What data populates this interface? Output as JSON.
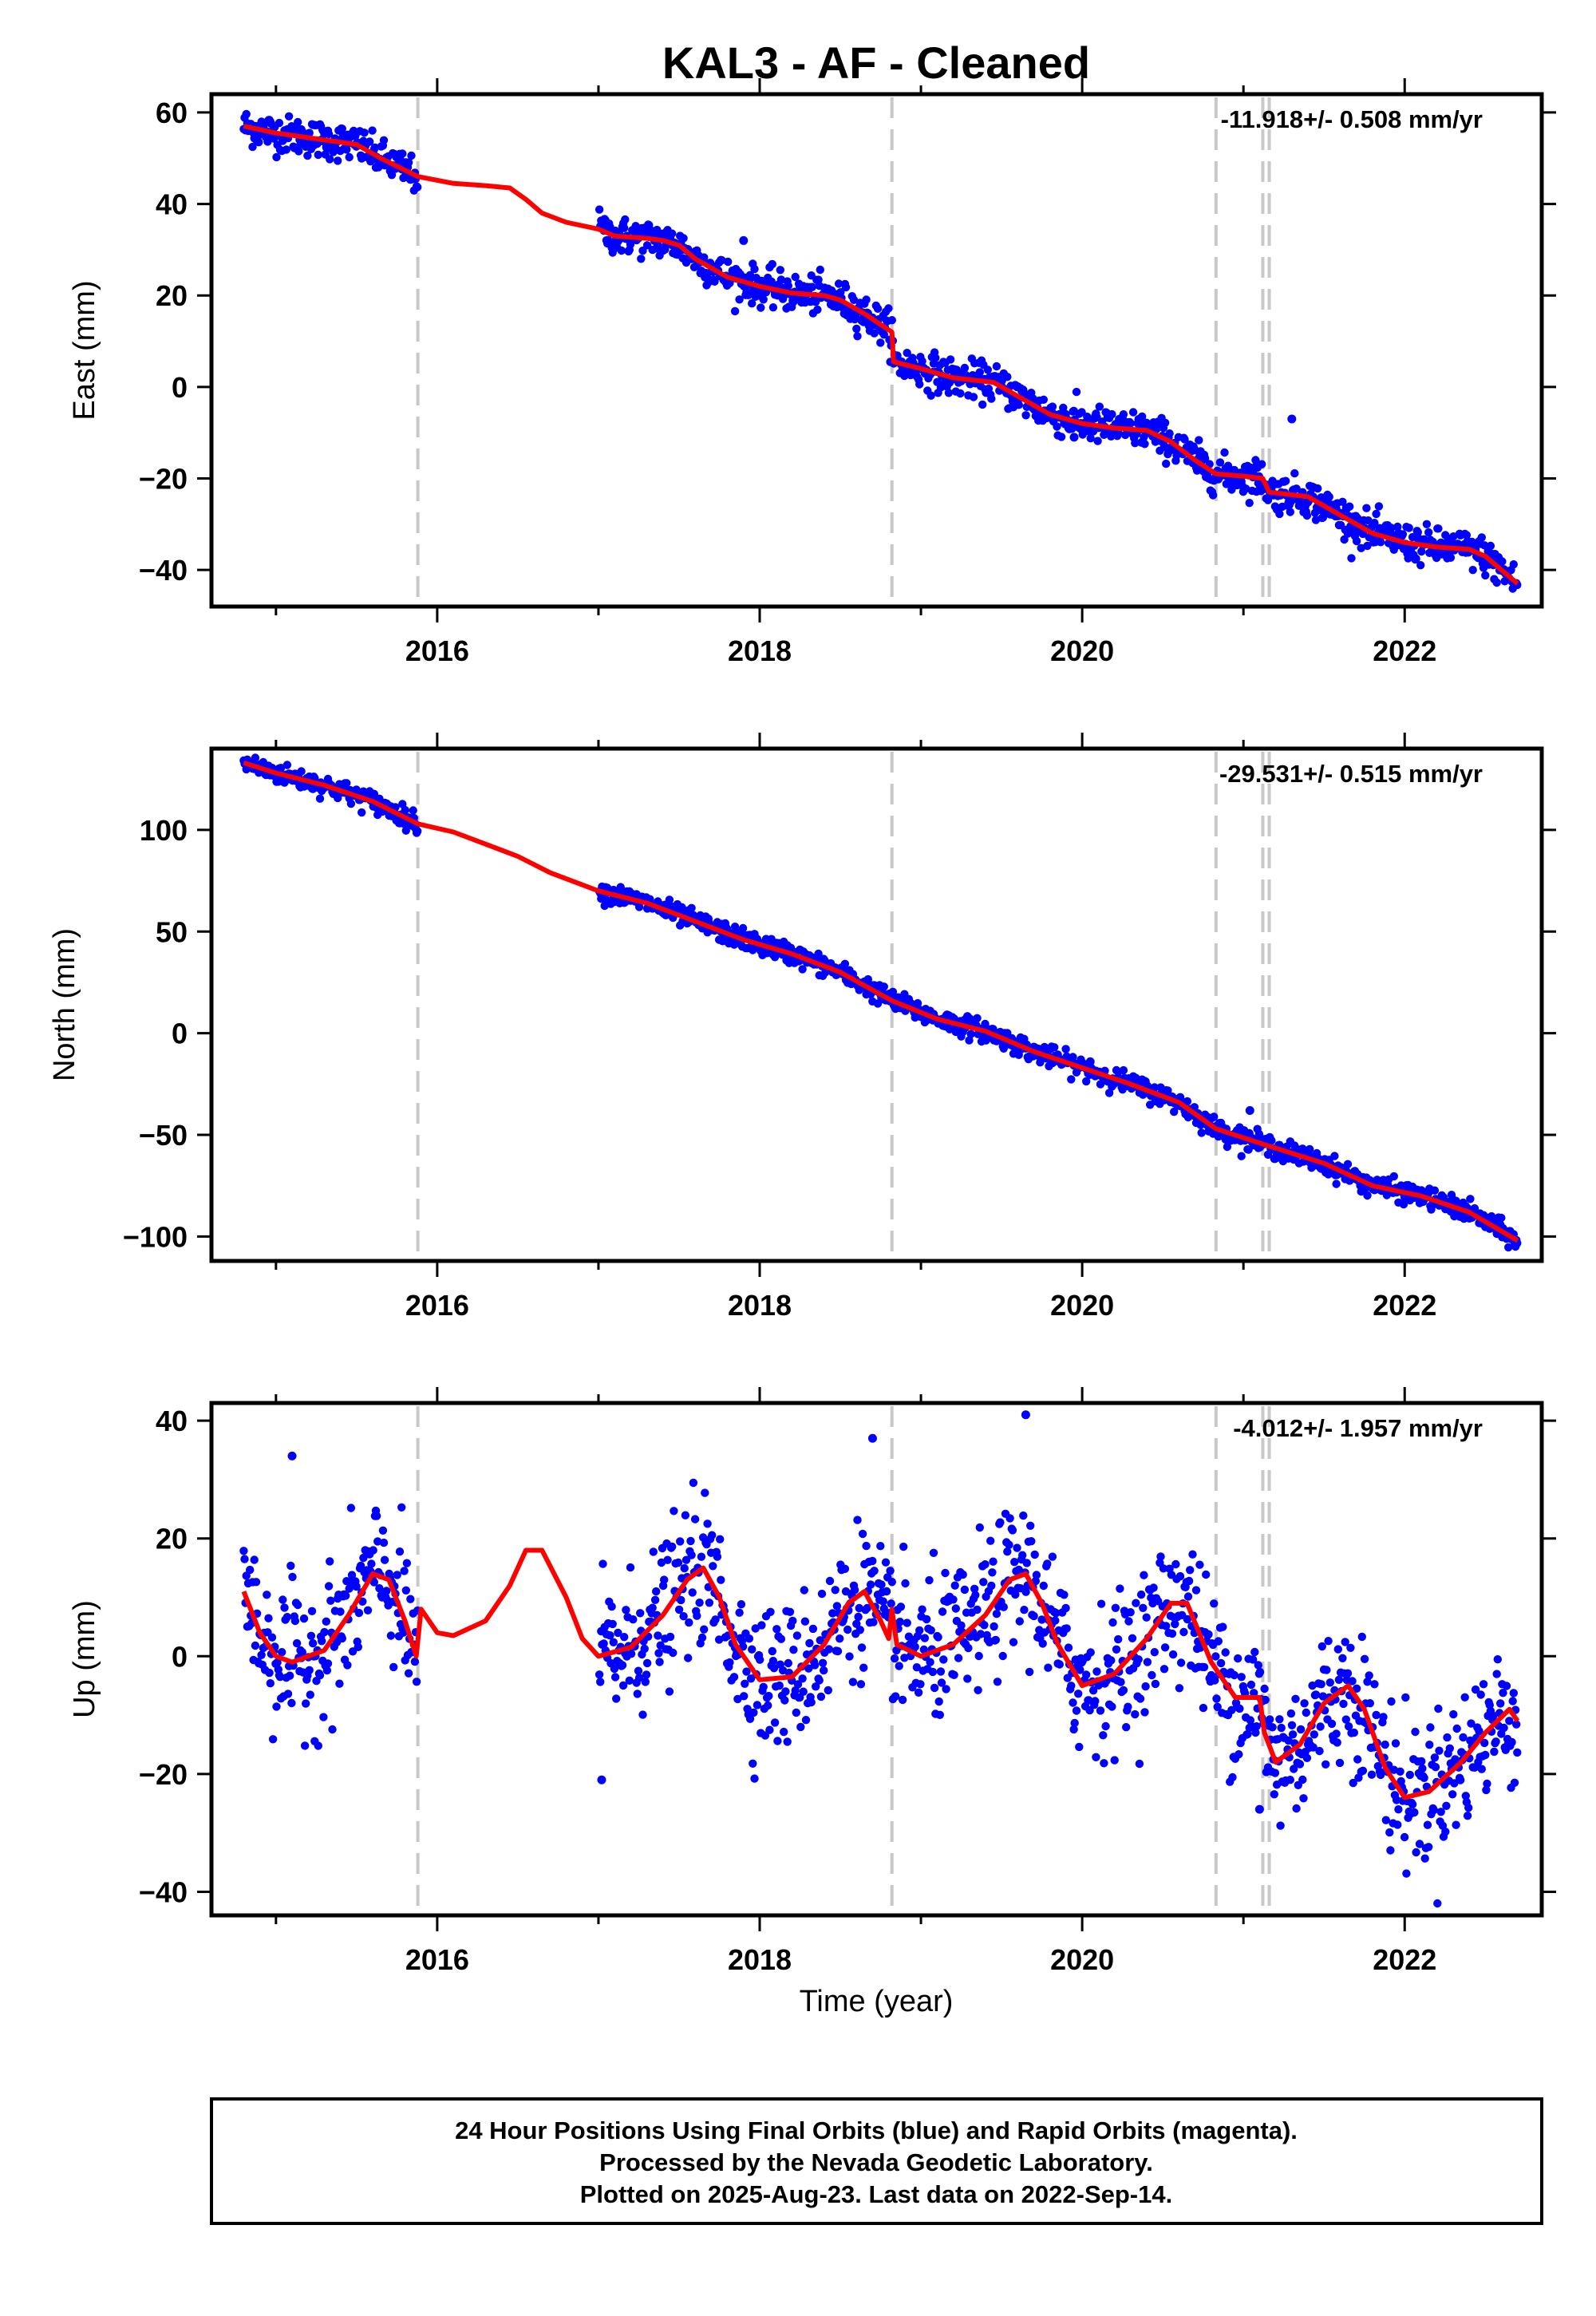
{
  "footer": {
    "line1": "24 Hour Positions Using Final Orbits (blue) and Rapid Orbits (magenta).",
    "line2": "Processed by the Nevada Geodetic Laboratory.",
    "line3": "Plotted on 2025-Aug-23. Last data on 2022-Sep-14."
  },
  "colors": {
    "data": "#0000ff",
    "model": "#ff0000",
    "events": "#c8c8c8",
    "frame": "#000000"
  },
  "chart_data": {
    "type": "scatter",
    "title": "KAL3  - AF - Cleaned",
    "xlabel": "Time (year)",
    "xlim": [
      2014.6,
      2022.85
    ],
    "x_ticks": [
      2016,
      2018,
      2020,
      2022
    ],
    "event_lines": [
      2015.88,
      2018.82,
      2020.83,
      2021.12,
      2021.16
    ],
    "data_gap": [
      2015.88,
      2017.0
    ],
    "data_range": [
      2014.8,
      2022.7
    ],
    "panels": [
      {
        "name": "east",
        "ylabel": "East (mm)",
        "ylim": [
          -48,
          64
        ],
        "y_ticks": [
          60,
          40,
          20,
          0,
          -20,
          -40
        ],
        "rate": "-11.918+/- 0.508 mm/yr",
        "model": [
          [
            2014.8,
            57
          ],
          [
            2015.0,
            55.5
          ],
          [
            2015.3,
            54
          ],
          [
            2015.5,
            53
          ],
          [
            2015.65,
            50
          ],
          [
            2015.88,
            46
          ],
          [
            2016.1,
            44.5
          ],
          [
            2016.3,
            44
          ],
          [
            2016.45,
            43.5
          ],
          [
            2016.55,
            41
          ],
          [
            2016.65,
            38
          ],
          [
            2016.8,
            36
          ],
          [
            2017.0,
            34.5
          ],
          [
            2017.1,
            33
          ],
          [
            2017.3,
            32.5
          ],
          [
            2017.4,
            32
          ],
          [
            2017.5,
            31
          ],
          [
            2017.6,
            28
          ],
          [
            2017.8,
            24
          ],
          [
            2018.0,
            22
          ],
          [
            2018.2,
            20.5
          ],
          [
            2018.4,
            20
          ],
          [
            2018.5,
            19
          ],
          [
            2018.65,
            16
          ],
          [
            2018.82,
            12
          ],
          [
            2018.83,
            5.5
          ],
          [
            2019.0,
            4
          ],
          [
            2019.2,
            2
          ],
          [
            2019.45,
            1
          ],
          [
            2019.6,
            -2
          ],
          [
            2019.8,
            -6
          ],
          [
            2020.0,
            -8
          ],
          [
            2020.2,
            -9
          ],
          [
            2020.4,
            -9.5
          ],
          [
            2020.55,
            -12
          ],
          [
            2020.7,
            -16
          ],
          [
            2020.83,
            -19
          ],
          [
            2021.0,
            -19.5
          ],
          [
            2021.12,
            -20
          ],
          [
            2021.16,
            -23
          ],
          [
            2021.4,
            -24
          ],
          [
            2021.6,
            -28
          ],
          [
            2021.8,
            -32
          ],
          [
            2022.0,
            -34
          ],
          [
            2022.2,
            -35
          ],
          [
            2022.4,
            -35.5
          ],
          [
            2022.5,
            -37
          ],
          [
            2022.7,
            -43
          ]
        ],
        "residual_sd": 2.0,
        "outliers": [
          [
            2021.3,
            -7
          ],
          [
            2019.95,
            -11
          ],
          [
            2017.9,
            32
          ]
        ]
      },
      {
        "name": "north",
        "ylabel": "North (mm)",
        "ylim": [
          -112,
          140
        ],
        "y_ticks": [
          100,
          50,
          0,
          -50,
          -100
        ],
        "rate": "-29.531+/- 0.515 mm/yr",
        "model": [
          [
            2014.8,
            133
          ],
          [
            2015.0,
            128
          ],
          [
            2015.3,
            122
          ],
          [
            2015.6,
            114
          ],
          [
            2015.88,
            103
          ],
          [
            2016.1,
            99
          ],
          [
            2016.3,
            93
          ],
          [
            2016.5,
            87
          ],
          [
            2016.7,
            79
          ],
          [
            2016.9,
            73
          ],
          [
            2017.0,
            70
          ],
          [
            2017.3,
            64
          ],
          [
            2017.6,
            55
          ],
          [
            2017.9,
            46
          ],
          [
            2018.2,
            39
          ],
          [
            2018.5,
            30
          ],
          [
            2018.82,
            16
          ],
          [
            2019.1,
            7
          ],
          [
            2019.4,
            1
          ],
          [
            2019.7,
            -9
          ],
          [
            2020.0,
            -17
          ],
          [
            2020.3,
            -25
          ],
          [
            2020.6,
            -34
          ],
          [
            2020.83,
            -47
          ],
          [
            2021.14,
            -55
          ],
          [
            2021.5,
            -64
          ],
          [
            2021.8,
            -75
          ],
          [
            2022.1,
            -80
          ],
          [
            2022.4,
            -88
          ],
          [
            2022.7,
            -102
          ]
        ],
        "residual_sd": 2.5,
        "outliers": [
          [
            2021.04,
            -38
          ],
          [
            2020.05,
            -14
          ]
        ]
      },
      {
        "name": "up",
        "ylabel": "Up (mm)",
        "ylim": [
          -44,
          43
        ],
        "y_ticks": [
          40,
          20,
          0,
          -20,
          -40
        ],
        "rate": "-4.012+/- 1.957 mm/yr",
        "model": [
          [
            2014.8,
            11
          ],
          [
            2014.9,
            4
          ],
          [
            2015.0,
            0
          ],
          [
            2015.1,
            -1
          ],
          [
            2015.3,
            1
          ],
          [
            2015.45,
            7
          ],
          [
            2015.6,
            14
          ],
          [
            2015.7,
            13
          ],
          [
            2015.8,
            6
          ],
          [
            2015.87,
            0
          ],
          [
            2015.9,
            8
          ],
          [
            2016.0,
            4
          ],
          [
            2016.1,
            3.5
          ],
          [
            2016.3,
            6
          ],
          [
            2016.45,
            12
          ],
          [
            2016.55,
            18
          ],
          [
            2016.65,
            18
          ],
          [
            2016.8,
            10
          ],
          [
            2016.9,
            3
          ],
          [
            2017.0,
            0
          ],
          [
            2017.2,
            1.5
          ],
          [
            2017.4,
            7
          ],
          [
            2017.55,
            13
          ],
          [
            2017.65,
            15
          ],
          [
            2017.75,
            10
          ],
          [
            2017.85,
            2
          ],
          [
            2018.0,
            -4
          ],
          [
            2018.2,
            -3.5
          ],
          [
            2018.4,
            2
          ],
          [
            2018.55,
            9
          ],
          [
            2018.65,
            11
          ],
          [
            2018.75,
            6
          ],
          [
            2018.8,
            3
          ],
          [
            2018.82,
            8
          ],
          [
            2018.85,
            2
          ],
          [
            2019.0,
            0
          ],
          [
            2019.2,
            2
          ],
          [
            2019.4,
            7
          ],
          [
            2019.55,
            13
          ],
          [
            2019.65,
            14
          ],
          [
            2019.75,
            9
          ],
          [
            2019.85,
            2
          ],
          [
            2020.0,
            -5
          ],
          [
            2020.2,
            -3
          ],
          [
            2020.4,
            3
          ],
          [
            2020.55,
            9
          ],
          [
            2020.65,
            9
          ],
          [
            2020.8,
            -1
          ],
          [
            2020.95,
            -7
          ],
          [
            2021.1,
            -7
          ],
          [
            2021.13,
            -13
          ],
          [
            2021.2,
            -18
          ],
          [
            2021.35,
            -15
          ],
          [
            2021.5,
            -8
          ],
          [
            2021.65,
            -5
          ],
          [
            2021.75,
            -9
          ],
          [
            2021.88,
            -19
          ],
          [
            2022.0,
            -24
          ],
          [
            2022.15,
            -23
          ],
          [
            2022.35,
            -18
          ],
          [
            2022.5,
            -13
          ],
          [
            2022.65,
            -9
          ],
          [
            2022.7,
            -11
          ]
        ],
        "residual_sd": 6.0,
        "outliers": [
          [
            2015.1,
            34
          ],
          [
            2018.7,
            37
          ],
          [
            2019.65,
            41
          ],
          [
            2017.02,
            -21
          ],
          [
            2021.1,
            -26
          ]
        ]
      }
    ]
  }
}
